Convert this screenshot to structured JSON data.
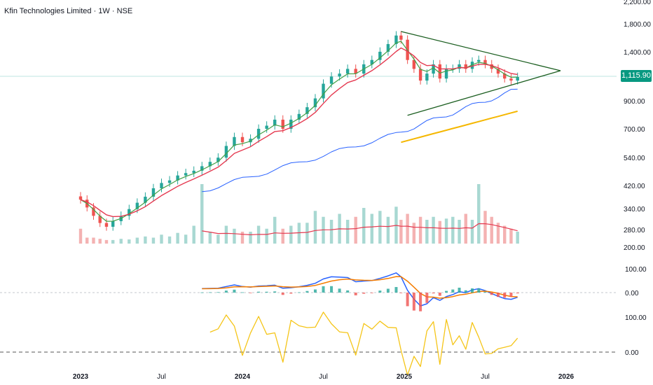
{
  "header": {
    "title": "Kfin Technologies Limited · 1W · NSE"
  },
  "last_price": "1,115.90",
  "colors": {
    "up": "#26a69a",
    "down": "#ef5350",
    "ema_fast": "#43a047",
    "ema_slow": "#e53950",
    "sma_blue": "#2962ff",
    "sma_gold": "#f5b700",
    "trendline": "#1b5e20",
    "macd": "#2962ff",
    "signal": "#f57c00",
    "rsi": "#f5c518"
  },
  "chart_data": {
    "type": "line",
    "title": "Kfin Technologies Limited · 1W · NSE",
    "price_axis": {
      "labels": [
        "2,200.00",
        "1,800.00",
        "1,400.00",
        "900.00",
        "700.00",
        "540.00",
        "420.00",
        "340.00",
        "280.00",
        "200.00"
      ],
      "values": [
        2200,
        1800,
        1400,
        900,
        700,
        540,
        420,
        340,
        280,
        200
      ],
      "scale": "log"
    },
    "macd_axis": {
      "labels": [
        "100.00",
        "0.00"
      ]
    },
    "rsi_axis": {
      "labels": [
        "100.00",
        "0.00"
      ]
    },
    "time_axis": {
      "labels": [
        "2023",
        "Jul",
        "2024",
        "Jul",
        "2025",
        "Jul",
        "2026"
      ],
      "years": [
        2023.0,
        2023.5,
        2024.0,
        2024.5,
        2025.0,
        2025.5,
        2026.0
      ]
    },
    "price_series": {
      "name": "",
      "t": [
        2023.0,
        2023.04,
        2023.08,
        2023.12,
        2023.16,
        2023.2,
        2023.25,
        2023.3,
        2023.35,
        2023.4,
        2023.45,
        2023.5,
        2023.55,
        2023.6,
        2023.65,
        2023.7,
        2023.75,
        2023.8,
        2023.85,
        2023.9,
        2023.95,
        2024.0,
        2024.05,
        2024.1,
        2024.15,
        2024.2,
        2024.25,
        2024.3,
        2024.35,
        2024.4,
        2024.45,
        2024.5,
        2024.55,
        2024.6,
        2024.65,
        2024.7,
        2024.75,
        2024.8,
        2024.85,
        2024.9,
        2024.95,
        2024.98,
        2025.02,
        2025.06,
        2025.1,
        2025.14,
        2025.18,
        2025.22,
        2025.26,
        2025.3,
        2025.34,
        2025.38,
        2025.42,
        2025.46,
        2025.5,
        2025.54,
        2025.58,
        2025.62,
        2025.66,
        2025.7
      ],
      "close": [
        370,
        345,
        320,
        300,
        290,
        305,
        320,
        340,
        360,
        380,
        410,
        430,
        440,
        460,
        470,
        480,
        500,
        520,
        540,
        600,
        650,
        620,
        640,
        700,
        720,
        760,
        700,
        760,
        800,
        850,
        920,
        1050,
        1120,
        1150,
        1200,
        1150,
        1250,
        1300,
        1400,
        1500,
        1620,
        1560,
        1300,
        1200,
        1080,
        1150,
        1250,
        1100,
        1200,
        1200,
        1250,
        1200,
        1280,
        1300,
        1250,
        1200,
        1150,
        1100,
        1080,
        1115.9
      ]
    },
    "volume_series": {
      "name": "",
      "relative_values": [
        0.25,
        0.1,
        0.1,
        0.08,
        0.06,
        0.06,
        0.08,
        0.07,
        0.1,
        0.12,
        0.1,
        0.15,
        0.12,
        0.18,
        0.15,
        0.3,
        1.0,
        0.2,
        0.15,
        0.3,
        0.25,
        0.2,
        0.2,
        0.3,
        0.25,
        0.45,
        0.25,
        0.3,
        0.35,
        0.35,
        0.55,
        0.45,
        0.4,
        0.5,
        0.4,
        0.45,
        0.6,
        0.5,
        0.55,
        0.45,
        0.62,
        0.4,
        0.5,
        0.35,
        0.45,
        0.4,
        0.45,
        0.38,
        0.42,
        0.45,
        0.4,
        0.5,
        0.4,
        1.0,
        0.55,
        0.45,
        0.35,
        0.3,
        0.25,
        0.2
      ]
    }
  }
}
